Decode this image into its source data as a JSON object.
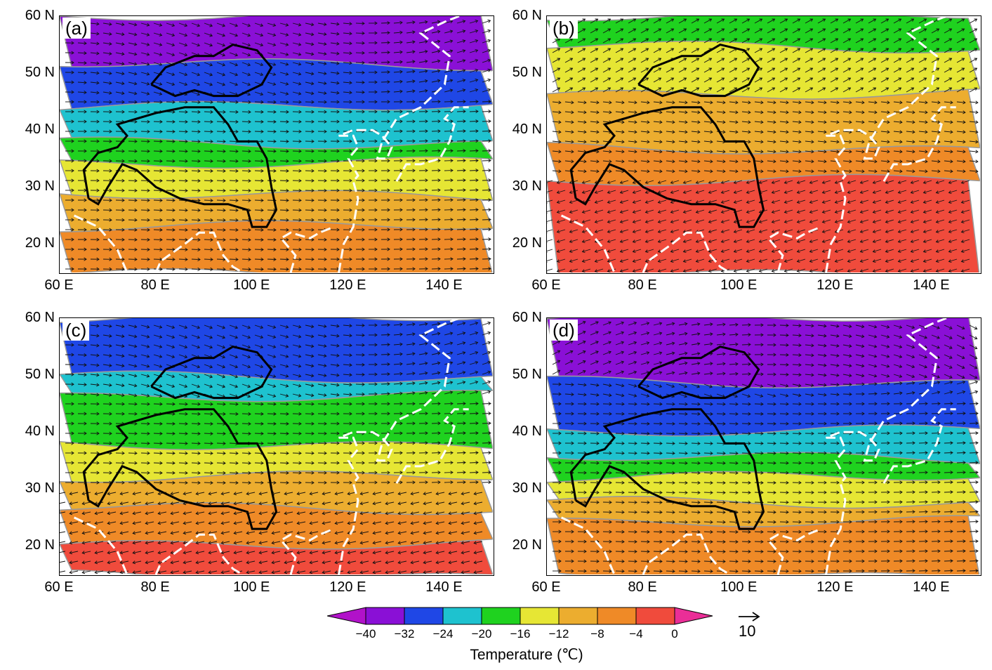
{
  "map": {
    "lat_ticks": [
      "60 N",
      "50 N",
      "40 N",
      "30 N",
      "20 N"
    ],
    "lon_ticks": [
      "60 E",
      "80 E",
      "100 E",
      "120 E",
      "140 E"
    ],
    "lat_range": [
      15,
      60
    ],
    "lon_range": [
      60,
      150
    ]
  },
  "panels": [
    {
      "label": "(a)",
      "bands": [
        [
          "#8a10d6",
          60,
          52
        ],
        [
          "#1f47e6",
          52,
          44
        ],
        [
          "#1ec2cf",
          44,
          38
        ],
        [
          "#1fd21f",
          38,
          34
        ],
        [
          "#e6e634",
          34,
          29
        ],
        [
          "#ecad2f",
          29,
          23
        ],
        [
          "#ef8a27",
          23,
          15
        ]
      ]
    },
    {
      "label": "(b)",
      "bands": [
        [
          "#1fd21f",
          60,
          55
        ],
        [
          "#e6e634",
          55,
          46
        ],
        [
          "#ecad2f",
          46,
          37
        ],
        [
          "#ef8a27",
          37,
          31
        ],
        [
          "#f04b3c",
          31,
          15
        ]
      ]
    },
    {
      "label": "(c)",
      "bands": [
        [
          "#1f47e6",
          60,
          50
        ],
        [
          "#1ec2cf",
          50,
          46
        ],
        [
          "#1fd21f",
          46,
          38
        ],
        [
          "#e6e634",
          38,
          32
        ],
        [
          "#ecad2f",
          32,
          27
        ],
        [
          "#ef8a27",
          27,
          20
        ],
        [
          "#f04b3c",
          20,
          15
        ]
      ]
    },
    {
      "label": "(d)",
      "bands": [
        [
          "#8a10d6",
          60,
          49
        ],
        [
          "#1f47e6",
          49,
          40
        ],
        [
          "#1ec2cf",
          40,
          36
        ],
        [
          "#1fd21f",
          36,
          32
        ],
        [
          "#e6e634",
          32,
          28
        ],
        [
          "#ecad2f",
          28,
          24
        ],
        [
          "#ef8a27",
          24,
          15
        ]
      ]
    }
  ],
  "colorbar": {
    "colors": [
      "#b112c9",
      "#8a10d6",
      "#1f47e6",
      "#1ec2cf",
      "#1fd21f",
      "#e6e634",
      "#ecad2f",
      "#ef8a27",
      "#f04b3c",
      "#ea2e97"
    ],
    "ticks": [
      "−40",
      "−32",
      "−24",
      "−20",
      "−16",
      "−12",
      "−8",
      "−4",
      "0"
    ],
    "title": "Temperature (℃)"
  },
  "reference_vector": {
    "label": "10"
  }
}
